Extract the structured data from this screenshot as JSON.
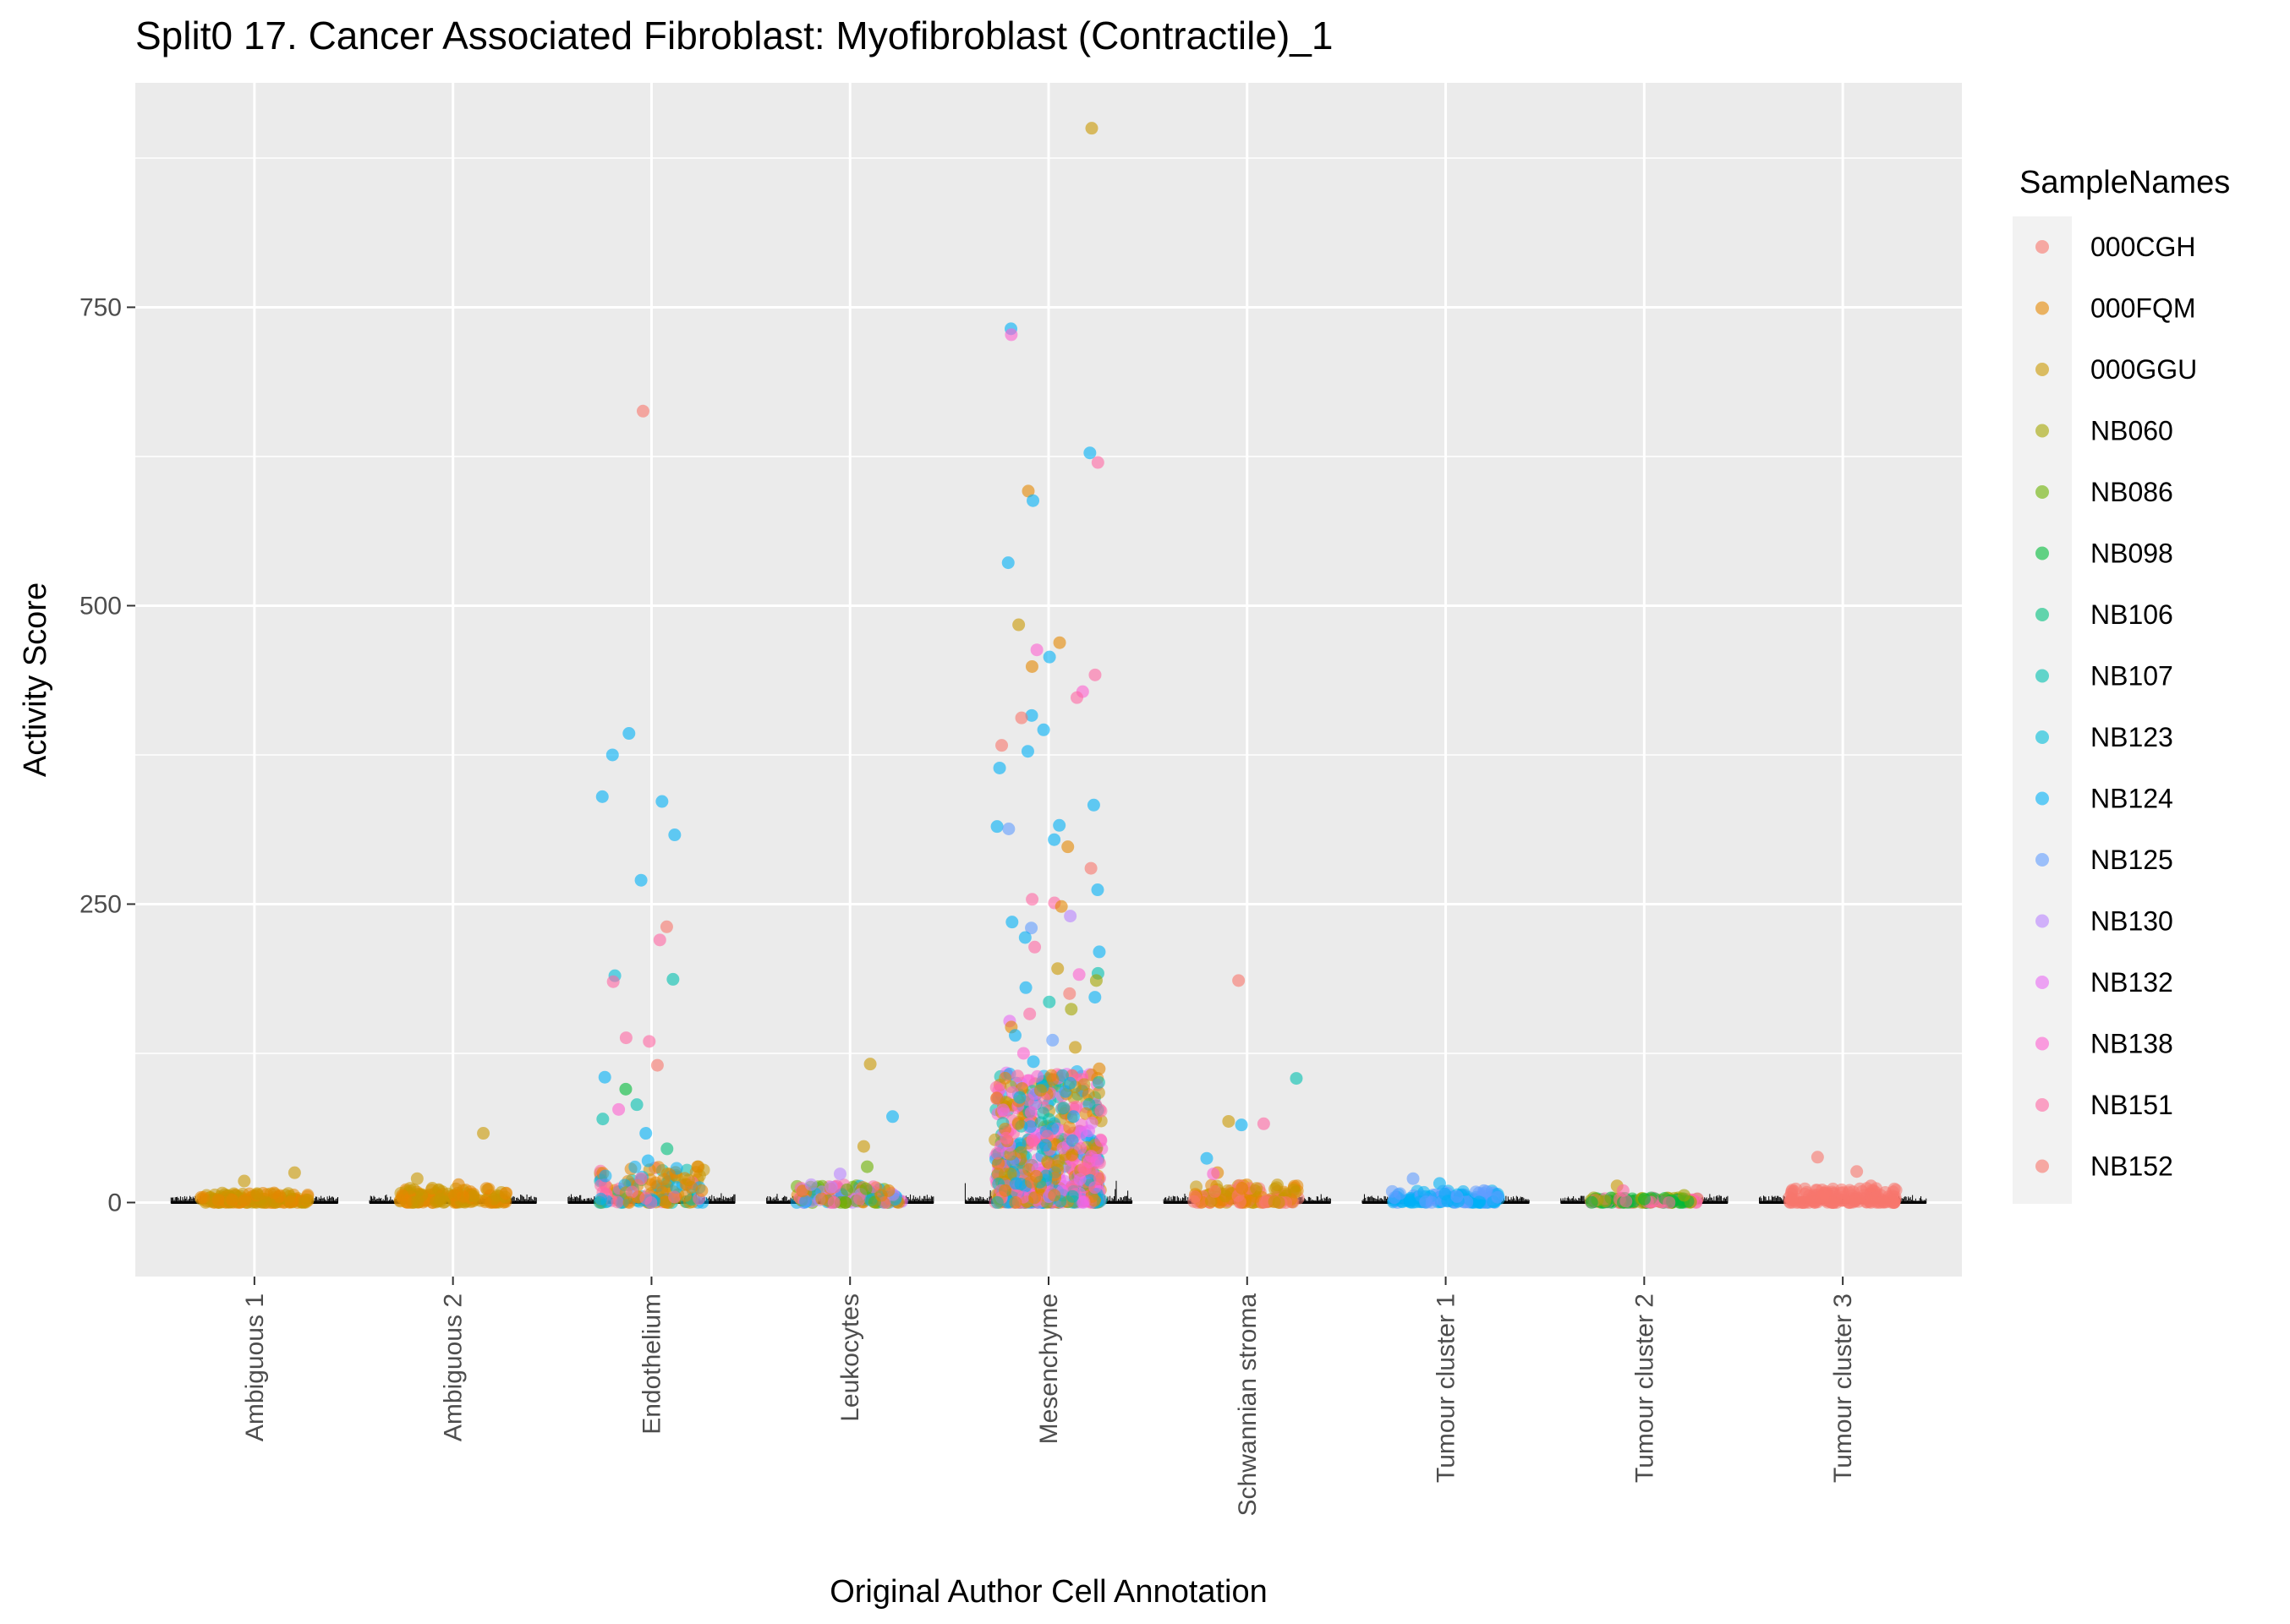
{
  "chart_data": {
    "type": "scatter",
    "title": "Split0 17. Cancer Associated Fibroblast: Myofibroblast (Contractile)_1",
    "xlabel": "Original Author Cell Annotation",
    "ylabel": "Activity Score",
    "ylim": [
      -62,
      938
    ],
    "yticks": [
      0,
      250,
      500,
      750
    ],
    "grid": true,
    "legend_position": "right",
    "categories": [
      "Ambiguous 1",
      "Ambiguous 2",
      "Endothelium",
      "Leukocytes",
      "Mesenchyme",
      "Schwannian stroma",
      "Tumour cluster 1",
      "Tumour cluster 2",
      "Tumour cluster 3"
    ],
    "legend": {
      "title": "SampleNames",
      "items": [
        {
          "name": "000CGH",
          "color": "#F8766D"
        },
        {
          "name": "000FQM",
          "color": "#E58700"
        },
        {
          "name": "000GGU",
          "color": "#C99800"
        },
        {
          "name": "NB060",
          "color": "#A3A500"
        },
        {
          "name": "NB086",
          "color": "#6BB100"
        },
        {
          "name": "NB098",
          "color": "#00BA38"
        },
        {
          "name": "NB106",
          "color": "#00BF7D"
        },
        {
          "name": "NB107",
          "color": "#00C0AF"
        },
        {
          "name": "NB123",
          "color": "#00BCD8"
        },
        {
          "name": "NB124",
          "color": "#00B0F6"
        },
        {
          "name": "NB125",
          "color": "#619CFF"
        },
        {
          "name": "NB130",
          "color": "#B983FF"
        },
        {
          "name": "NB132",
          "color": "#E76BF3"
        },
        {
          "name": "NB138",
          "color": "#FD61D1"
        },
        {
          "name": "NB151",
          "color": "#FF67A4"
        },
        {
          "name": "NB152",
          "color": "#F8766D"
        }
      ]
    },
    "points": [
      {
        "category": "Ambiguous 1",
        "sample": "000FQM",
        "y": 2
      },
      {
        "category": "Ambiguous 1",
        "sample": "000FQM",
        "y": 5
      },
      {
        "category": "Ambiguous 1",
        "sample": "000GGU",
        "y": 18
      },
      {
        "category": "Ambiguous 1",
        "sample": "000GGU",
        "y": 25
      },
      {
        "category": "Ambiguous 1",
        "sample": "000FQM",
        "y": 8
      },
      {
        "category": "Ambiguous 2",
        "sample": "000GGU",
        "y": 58
      },
      {
        "category": "Ambiguous 2",
        "sample": "000GGU",
        "y": 20
      },
      {
        "category": "Ambiguous 2",
        "sample": "000FQM",
        "y": 15
      },
      {
        "category": "Ambiguous 2",
        "sample": "000FQM",
        "y": 6
      },
      {
        "category": "Ambiguous 2",
        "sample": "000GGU",
        "y": 12
      },
      {
        "category": "Endothelium",
        "sample": "NB152",
        "y": 663
      },
      {
        "category": "Endothelium",
        "sample": "NB124",
        "y": 393
      },
      {
        "category": "Endothelium",
        "sample": "NB124",
        "y": 375
      },
      {
        "category": "Endothelium",
        "sample": "NB124",
        "y": 336
      },
      {
        "category": "Endothelium",
        "sample": "NB124",
        "y": 340
      },
      {
        "category": "Endothelium",
        "sample": "NB124",
        "y": 308
      },
      {
        "category": "Endothelium",
        "sample": "NB124",
        "y": 270
      },
      {
        "category": "Endothelium",
        "sample": "NB152",
        "y": 231
      },
      {
        "category": "Endothelium",
        "sample": "NB151",
        "y": 220
      },
      {
        "category": "Endothelium",
        "sample": "NB123",
        "y": 190
      },
      {
        "category": "Endothelium",
        "sample": "NB107",
        "y": 187
      },
      {
        "category": "Endothelium",
        "sample": "NB151",
        "y": 185
      },
      {
        "category": "Endothelium",
        "sample": "NB151",
        "y": 138
      },
      {
        "category": "Endothelium",
        "sample": "NB151",
        "y": 135
      },
      {
        "category": "Endothelium",
        "sample": "NB152",
        "y": 115
      },
      {
        "category": "Endothelium",
        "sample": "NB124",
        "y": 105
      },
      {
        "category": "Endothelium",
        "sample": "NB098",
        "y": 95
      },
      {
        "category": "Endothelium",
        "sample": "NB107",
        "y": 82
      },
      {
        "category": "Endothelium",
        "sample": "NB138",
        "y": 78
      },
      {
        "category": "Endothelium",
        "sample": "NB107",
        "y": 70
      },
      {
        "category": "Endothelium",
        "sample": "NB124",
        "y": 58
      },
      {
        "category": "Endothelium",
        "sample": "NB106",
        "y": 45
      },
      {
        "category": "Endothelium",
        "sample": "000FQM",
        "y": 30
      },
      {
        "category": "Endothelium",
        "sample": "NB124",
        "y": 35
      },
      {
        "category": "Endothelium",
        "sample": "NB151",
        "y": 20
      },
      {
        "category": "Endothelium",
        "sample": "000FQM",
        "y": 10
      },
      {
        "category": "Leukocytes",
        "sample": "000GGU",
        "y": 116
      },
      {
        "category": "Leukocytes",
        "sample": "NB124",
        "y": 72
      },
      {
        "category": "Leukocytes",
        "sample": "000GGU",
        "y": 47
      },
      {
        "category": "Leukocytes",
        "sample": "NB086",
        "y": 30
      },
      {
        "category": "Leukocytes",
        "sample": "NB130",
        "y": 24
      },
      {
        "category": "Leukocytes",
        "sample": "000FQM",
        "y": 10
      },
      {
        "category": "Mesenchyme",
        "sample": "000GGU",
        "y": 900
      },
      {
        "category": "Mesenchyme",
        "sample": "NB124",
        "y": 732
      },
      {
        "category": "Mesenchyme",
        "sample": "NB138",
        "y": 727
      },
      {
        "category": "Mesenchyme",
        "sample": "NB124",
        "y": 628
      },
      {
        "category": "Mesenchyme",
        "sample": "NB151",
        "y": 620
      },
      {
        "category": "Mesenchyme",
        "sample": "000FQM",
        "y": 596
      },
      {
        "category": "Mesenchyme",
        "sample": "NB124",
        "y": 588
      },
      {
        "category": "Mesenchyme",
        "sample": "NB124",
        "y": 536
      },
      {
        "category": "Mesenchyme",
        "sample": "000GGU",
        "y": 484
      },
      {
        "category": "Mesenchyme",
        "sample": "000FQM",
        "y": 469
      },
      {
        "category": "Mesenchyme",
        "sample": "NB138",
        "y": 463
      },
      {
        "category": "Mesenchyme",
        "sample": "NB124",
        "y": 457
      },
      {
        "category": "Mesenchyme",
        "sample": "000FQM",
        "y": 449
      },
      {
        "category": "Mesenchyme",
        "sample": "NB151",
        "y": 442
      },
      {
        "category": "Mesenchyme",
        "sample": "NB138",
        "y": 428
      },
      {
        "category": "Mesenchyme",
        "sample": "NB151",
        "y": 423
      },
      {
        "category": "Mesenchyme",
        "sample": "NB124",
        "y": 408
      },
      {
        "category": "Mesenchyme",
        "sample": "NB152",
        "y": 406
      },
      {
        "category": "Mesenchyme",
        "sample": "NB124",
        "y": 396
      },
      {
        "category": "Mesenchyme",
        "sample": "NB152",
        "y": 383
      },
      {
        "category": "Mesenchyme",
        "sample": "NB124",
        "y": 378
      },
      {
        "category": "Mesenchyme",
        "sample": "NB124",
        "y": 364
      },
      {
        "category": "Mesenchyme",
        "sample": "NB124",
        "y": 333
      },
      {
        "category": "Mesenchyme",
        "sample": "NB124",
        "y": 316
      },
      {
        "category": "Mesenchyme",
        "sample": "NB124",
        "y": 315
      },
      {
        "category": "Mesenchyme",
        "sample": "NB125",
        "y": 313
      },
      {
        "category": "Mesenchyme",
        "sample": "NB124",
        "y": 304
      },
      {
        "category": "Mesenchyme",
        "sample": "000FQM",
        "y": 298
      },
      {
        "category": "Mesenchyme",
        "sample": "NB152",
        "y": 280
      },
      {
        "category": "Mesenchyme",
        "sample": "NB124",
        "y": 262
      },
      {
        "category": "Mesenchyme",
        "sample": "NB151",
        "y": 254
      },
      {
        "category": "Mesenchyme",
        "sample": "NB151",
        "y": 251
      },
      {
        "category": "Mesenchyme",
        "sample": "000FQM",
        "y": 248
      },
      {
        "category": "Mesenchyme",
        "sample": "NB130",
        "y": 240
      },
      {
        "category": "Mesenchyme",
        "sample": "NB124",
        "y": 235
      },
      {
        "category": "Mesenchyme",
        "sample": "NB125",
        "y": 230
      },
      {
        "category": "Mesenchyme",
        "sample": "NB124",
        "y": 222
      },
      {
        "category": "Mesenchyme",
        "sample": "NB151",
        "y": 214
      },
      {
        "category": "Mesenchyme",
        "sample": "NB124",
        "y": 210
      },
      {
        "category": "Mesenchyme",
        "sample": "000GGU",
        "y": 196
      },
      {
        "category": "Mesenchyme",
        "sample": "NB107",
        "y": 192
      },
      {
        "category": "Mesenchyme",
        "sample": "NB138",
        "y": 191
      },
      {
        "category": "Mesenchyme",
        "sample": "NB060",
        "y": 186
      },
      {
        "category": "Mesenchyme",
        "sample": "NB124",
        "y": 180
      },
      {
        "category": "Mesenchyme",
        "sample": "NB152",
        "y": 175
      },
      {
        "category": "Mesenchyme",
        "sample": "NB124",
        "y": 172
      },
      {
        "category": "Mesenchyme",
        "sample": "NB107",
        "y": 168
      },
      {
        "category": "Mesenchyme",
        "sample": "NB060",
        "y": 162
      },
      {
        "category": "Mesenchyme",
        "sample": "NB151",
        "y": 158
      },
      {
        "category": "Mesenchyme",
        "sample": "NB132",
        "y": 152
      },
      {
        "category": "Mesenchyme",
        "sample": "000FQM",
        "y": 147
      },
      {
        "category": "Mesenchyme",
        "sample": "NB124",
        "y": 140
      },
      {
        "category": "Mesenchyme",
        "sample": "NB125",
        "y": 136
      },
      {
        "category": "Mesenchyme",
        "sample": "000GGU",
        "y": 130
      },
      {
        "category": "Mesenchyme",
        "sample": "NB138",
        "y": 125
      },
      {
        "category": "Mesenchyme",
        "sample": "NB124",
        "y": 118
      },
      {
        "category": "Mesenchyme",
        "sample": "000FQM",
        "y": 112
      },
      {
        "category": "Mesenchyme",
        "sample": "NB151",
        "y": 106
      },
      {
        "category": "Mesenchyme",
        "sample": "NB124",
        "y": 100
      },
      {
        "category": "Mesenchyme",
        "sample": "000GGU",
        "y": 94
      },
      {
        "category": "Mesenchyme",
        "sample": "NB123",
        "y": 88
      },
      {
        "category": "Mesenchyme",
        "sample": "NB151",
        "y": 80
      },
      {
        "category": "Mesenchyme",
        "sample": "NB124",
        "y": 72
      },
      {
        "category": "Mesenchyme",
        "sample": "000FQM",
        "y": 66
      },
      {
        "category": "Mesenchyme",
        "sample": "NB132",
        "y": 60
      },
      {
        "category": "Mesenchyme",
        "sample": "NB151",
        "y": 54
      },
      {
        "category": "Mesenchyme",
        "sample": "NB124",
        "y": 48
      },
      {
        "category": "Mesenchyme",
        "sample": "000FQM",
        "y": 40
      },
      {
        "category": "Mesenchyme",
        "sample": "NB138",
        "y": 34
      },
      {
        "category": "Mesenchyme",
        "sample": "NB151",
        "y": 28
      },
      {
        "category": "Mesenchyme",
        "sample": "000FQM",
        "y": 22
      },
      {
        "category": "Mesenchyme",
        "sample": "NB124",
        "y": 16
      },
      {
        "category": "Mesenchyme",
        "sample": "000FQM",
        "y": 10
      },
      {
        "category": "Mesenchyme",
        "sample": "000FQM",
        "y": 4
      },
      {
        "category": "Schwannian stroma",
        "sample": "NB152",
        "y": 186
      },
      {
        "category": "Schwannian stroma",
        "sample": "NB107",
        "y": 104
      },
      {
        "category": "Schwannian stroma",
        "sample": "000GGU",
        "y": 68
      },
      {
        "category": "Schwannian stroma",
        "sample": "NB151",
        "y": 66
      },
      {
        "category": "Schwannian stroma",
        "sample": "NB124",
        "y": 65
      },
      {
        "category": "Schwannian stroma",
        "sample": "NB124",
        "y": 37
      },
      {
        "category": "Schwannian stroma",
        "sample": "000FQM",
        "y": 25
      },
      {
        "category": "Schwannian stroma",
        "sample": "NB138",
        "y": 24
      },
      {
        "category": "Schwannian stroma",
        "sample": "000FQM",
        "y": 12
      },
      {
        "category": "Tumour cluster 1",
        "sample": "NB125",
        "y": 20
      },
      {
        "category": "Tumour cluster 1",
        "sample": "NB124",
        "y": 16
      },
      {
        "category": "Tumour cluster 1",
        "sample": "NB125",
        "y": 10
      },
      {
        "category": "Tumour cluster 1",
        "sample": "NB125",
        "y": 5
      },
      {
        "category": "Tumour cluster 2",
        "sample": "000GGU",
        "y": 14
      },
      {
        "category": "Tumour cluster 2",
        "sample": "NB151",
        "y": 10
      },
      {
        "category": "Tumour cluster 2",
        "sample": "NB060",
        "y": 6
      },
      {
        "category": "Tumour cluster 2",
        "sample": "NB098",
        "y": 3
      },
      {
        "category": "Tumour cluster 3",
        "sample": "NB152",
        "y": 38
      },
      {
        "category": "Tumour cluster 3",
        "sample": "000CGH",
        "y": 26
      },
      {
        "category": "Tumour cluster 3",
        "sample": "000CGH",
        "y": 14
      },
      {
        "category": "Tumour cluster 3",
        "sample": "000CGH",
        "y": 8
      }
    ],
    "clusters": [
      {
        "category": "Ambiguous 1",
        "colors": [
          "000FQM",
          "000GGU"
        ],
        "max": 8
      },
      {
        "category": "Ambiguous 2",
        "colors": [
          "000GGU",
          "000FQM"
        ],
        "max": 12
      },
      {
        "category": "Endothelium",
        "colors": [
          "000FQM",
          "NB151",
          "NB124",
          "NB107",
          "000GGU"
        ],
        "max": 30
      },
      {
        "category": "Leukocytes",
        "colors": [
          "000FQM",
          "NB124",
          "NB130",
          "NB086",
          "NB151"
        ],
        "max": 15
      },
      {
        "category": "Mesenchyme",
        "colors": [
          "000FQM",
          "NB151",
          "NB124",
          "NB132",
          "000GGU",
          "NB138",
          "NB107"
        ],
        "max": 110
      },
      {
        "category": "Schwannian stroma",
        "colors": [
          "000FQM",
          "NB152",
          "000GGU"
        ],
        "max": 15
      },
      {
        "category": "Tumour cluster 1",
        "colors": [
          "NB125",
          "NB124"
        ],
        "max": 10
      },
      {
        "category": "Tumour cluster 2",
        "colors": [
          "NB060",
          "NB098",
          "NB151"
        ],
        "max": 4
      },
      {
        "category": "Tumour cluster 3",
        "colors": [
          "000CGH"
        ],
        "max": 12
      }
    ]
  }
}
